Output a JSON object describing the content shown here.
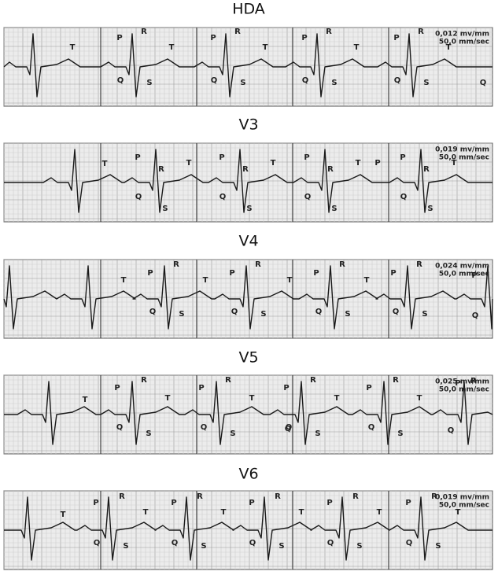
{
  "strips": [
    {
      "title": "HDA",
      "scale": [
        "0,012 mv/mm",
        "50,0 mm/sec"
      ],
      "extras": [
        "T",
        "Q"
      ],
      "beats": [
        [
          "P",
          "R",
          "T",
          "Q",
          "S"
        ],
        [
          "P",
          "R",
          "T",
          "Q",
          "S"
        ],
        [
          "P",
          "R",
          "T",
          "Q",
          "S"
        ],
        [
          "P",
          "R",
          "T",
          "Q",
          "S"
        ]
      ]
    },
    {
      "title": "V3",
      "scale": [
        "0,019 mv/mm",
        "50,0 mm/sec"
      ],
      "extras": [
        "T",
        "P"
      ],
      "beats": [
        [
          "P",
          "R",
          "T",
          "Q",
          "S"
        ],
        [
          "P",
          "R",
          "T",
          "Q",
          "S"
        ],
        [
          "P",
          "R",
          "T",
          "Q",
          "S"
        ],
        [
          "P",
          "R",
          "T",
          "Q",
          "S"
        ]
      ]
    },
    {
      "title": "V4",
      "scale": [
        "0,024 mv/mm",
        "50,0 mm/sec"
      ],
      "extras": [
        "P",
        "Q"
      ],
      "beats": [
        [
          "P",
          "R",
          "T",
          "Q",
          "S"
        ],
        [
          "P",
          "R",
          "T",
          "Q",
          "S"
        ],
        [
          "P",
          "R",
          "T",
          "Q",
          "S"
        ],
        [
          "P",
          "R",
          "T",
          "Q",
          "S"
        ]
      ]
    },
    {
      "title": "V5",
      "scale": [
        "0,025 mv/mm",
        "50,0 mm/sec"
      ],
      "extras": [
        "T",
        "Q",
        "P",
        "R",
        "Q"
      ],
      "beats": [
        [
          "P",
          "R",
          "T",
          "Q",
          "S"
        ],
        [
          "P",
          "R",
          "T",
          "Q",
          "S"
        ],
        [
          "P",
          "R",
          "T",
          "Q",
          "S"
        ],
        [
          "P",
          "R",
          "T",
          "Q",
          "S"
        ]
      ]
    },
    {
      "title": "V6",
      "scale": [
        "0,019 mv/mm",
        "50,0 mm/sec"
      ],
      "extras": [
        "T"
      ],
      "beats": [
        [
          "P",
          "R",
          "T",
          "Q",
          "S"
        ],
        [
          "P",
          "R",
          "T",
          "Q",
          "S"
        ],
        [
          "P",
          "R",
          "T",
          "Q",
          "S"
        ],
        [
          "P",
          "R",
          "T",
          "Q",
          "S"
        ],
        [
          "P",
          "R",
          "T",
          "Q",
          "S"
        ]
      ]
    }
  ]
}
